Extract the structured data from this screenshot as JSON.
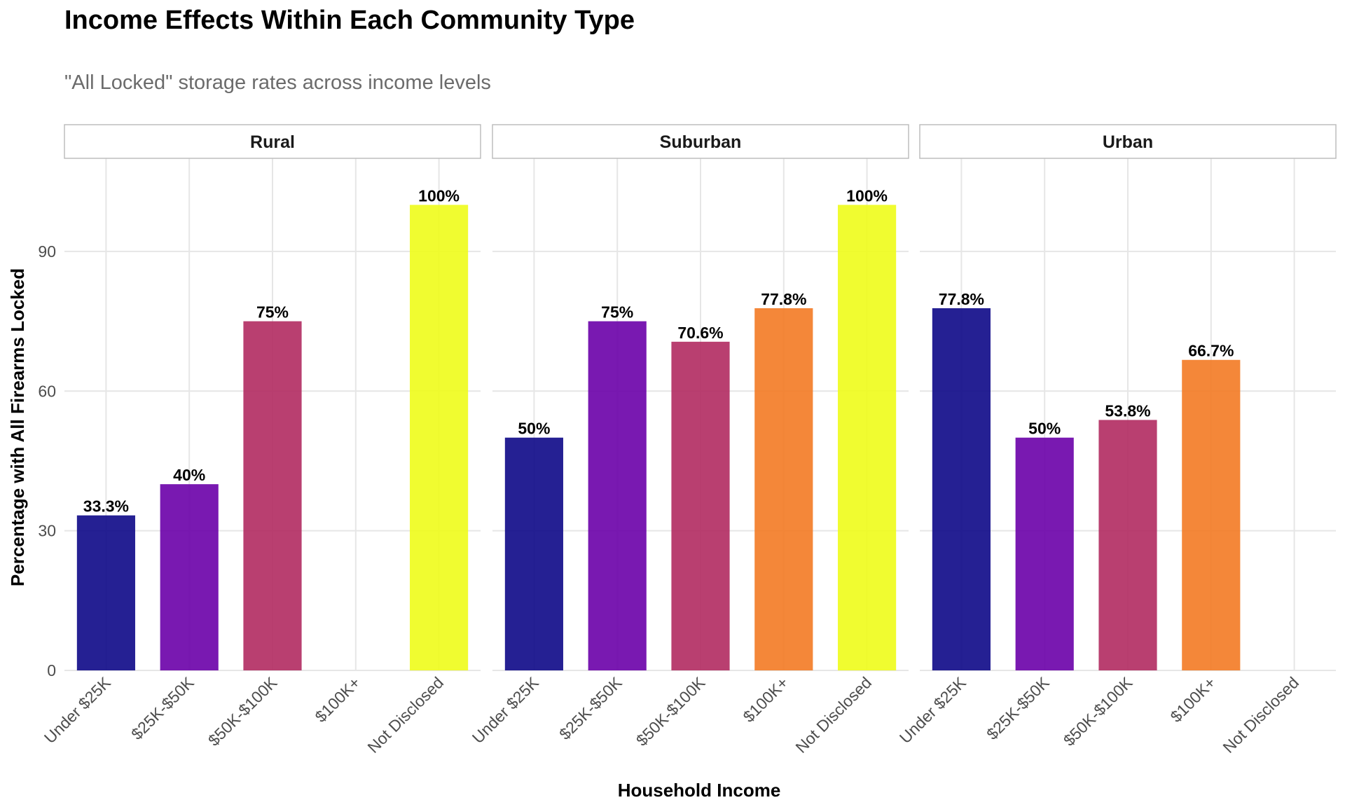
{
  "chart_data": {
    "type": "bar",
    "title": "Income Effects Within Each Community Type",
    "subtitle": "\"All Locked\" storage rates across income levels",
    "xlabel": "Household Income",
    "ylabel": "Percentage with All Firearms Locked",
    "ylim": [
      0,
      110
    ],
    "yticks": [
      "0",
      "30",
      "60",
      "90"
    ],
    "grid": true,
    "categories": [
      "Under $25K",
      "$25K-$50K",
      "$50K-$100K",
      "$100K+",
      "Not Disclosed"
    ],
    "colors": [
      "#0d0887",
      "#6a00a8",
      "#b12a60",
      "#f37a24",
      "#eefc19"
    ],
    "panels": [
      {
        "name": "Rural",
        "values": [
          33.3,
          40,
          75,
          null,
          100
        ],
        "labels": [
          "33.3%",
          "40%",
          "75%",
          "",
          "100%"
        ]
      },
      {
        "name": "Suburban",
        "values": [
          50,
          75,
          70.6,
          77.8,
          100
        ],
        "labels": [
          "50%",
          "75%",
          "70.6%",
          "77.8%",
          "100%"
        ]
      },
      {
        "name": "Urban",
        "values": [
          77.8,
          50,
          53.8,
          66.7,
          null
        ],
        "labels": [
          "77.8%",
          "50%",
          "53.8%",
          "66.7%",
          ""
        ]
      }
    ]
  }
}
